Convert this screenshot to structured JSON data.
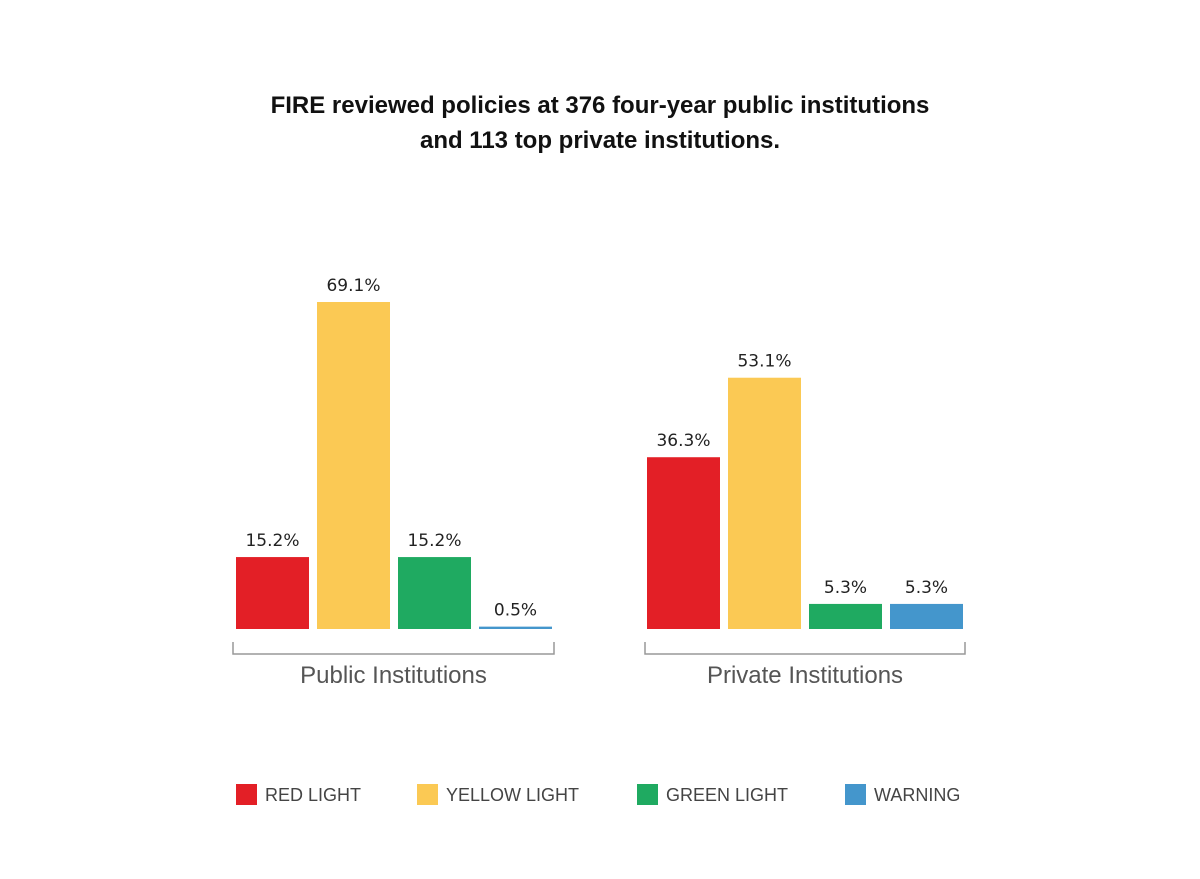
{
  "chart_data": {
    "type": "bar",
    "title_lines": [
      "FIRE reviewed policies at 376 four-year public institutions",
      "and 113 top private institutions."
    ],
    "groups": [
      "Public Institutions",
      "Private Institutions"
    ],
    "series": [
      {
        "name": "RED LIGHT",
        "color": "#e31f26",
        "values": [
          15.2,
          36.3
        ],
        "labels": [
          "15.2%",
          "36.3%"
        ]
      },
      {
        "name": "YELLOW LIGHT",
        "color": "#fbc954",
        "values": [
          69.1,
          53.1
        ],
        "labels": [
          "69.1%",
          "53.1%"
        ]
      },
      {
        "name": "GREEN LIGHT",
        "color": "#1faa61",
        "values": [
          15.2,
          5.3
        ],
        "labels": [
          "15.2%",
          "5.3%"
        ]
      },
      {
        "name": "WARNING",
        "color": "#4496cc",
        "values": [
          0.5,
          5.3
        ],
        "labels": [
          "0.5%",
          "5.3%"
        ]
      }
    ],
    "ylim": [
      0,
      100
    ],
    "grid": false,
    "legend_position": "bottom"
  }
}
